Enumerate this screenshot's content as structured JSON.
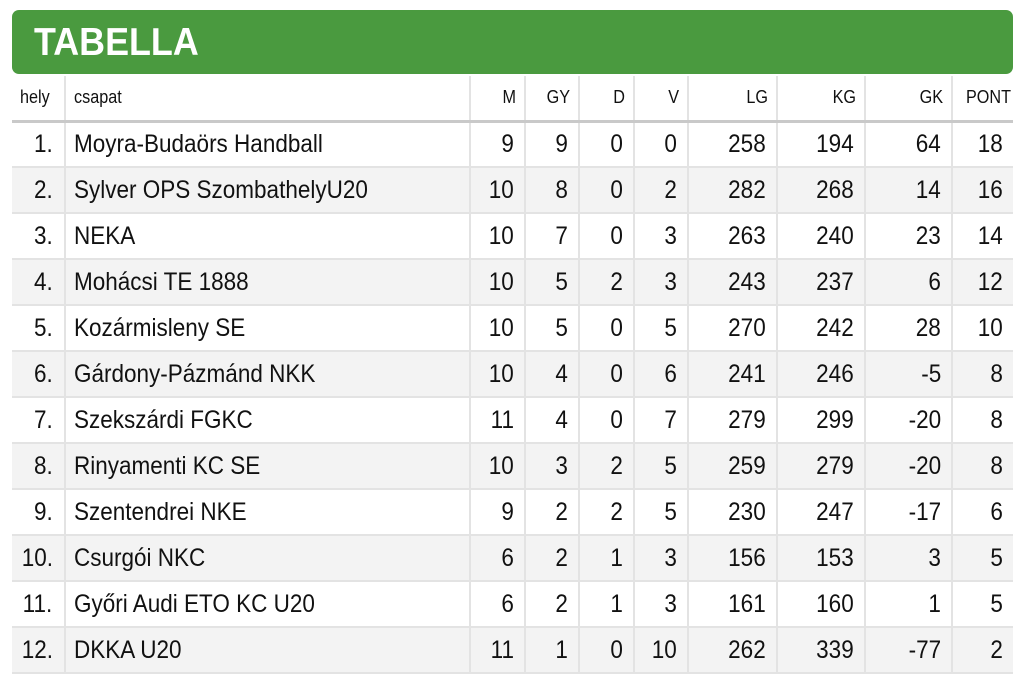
{
  "header": {
    "title": "TABELLA",
    "background_color": "#4a9a3f"
  },
  "table": {
    "columns": {
      "hely": "hely",
      "csapat": "csapat",
      "m": "M",
      "gy": "GY",
      "d": "D",
      "v": "V",
      "lg": "LG",
      "kg": "KG",
      "gk": "GK",
      "pont": "PONT"
    },
    "rows": [
      {
        "hely": "1.",
        "csapat": "Moyra-Budaörs Handball",
        "m": "9",
        "gy": "9",
        "d": "0",
        "v": "0",
        "lg": "258",
        "kg": "194",
        "gk": "64",
        "pont": "18"
      },
      {
        "hely": "2.",
        "csapat": "Sylver OPS SzombathelyU20",
        "m": "10",
        "gy": "8",
        "d": "0",
        "v": "2",
        "lg": "282",
        "kg": "268",
        "gk": "14",
        "pont": "16"
      },
      {
        "hely": "3.",
        "csapat": "NEKA",
        "m": "10",
        "gy": "7",
        "d": "0",
        "v": "3",
        "lg": "263",
        "kg": "240",
        "gk": "23",
        "pont": "14"
      },
      {
        "hely": "4.",
        "csapat": "Mohácsi TE 1888",
        "m": "10",
        "gy": "5",
        "d": "2",
        "v": "3",
        "lg": "243",
        "kg": "237",
        "gk": "6",
        "pont": "12"
      },
      {
        "hely": "5.",
        "csapat": "Kozármisleny SE",
        "m": "10",
        "gy": "5",
        "d": "0",
        "v": "5",
        "lg": "270",
        "kg": "242",
        "gk": "28",
        "pont": "10"
      },
      {
        "hely": "6.",
        "csapat": "Gárdony-Pázmánd NKK",
        "m": "10",
        "gy": "4",
        "d": "0",
        "v": "6",
        "lg": "241",
        "kg": "246",
        "gk": "-5",
        "pont": "8"
      },
      {
        "hely": "7.",
        "csapat": "Szekszárdi FGKC",
        "m": "11",
        "gy": "4",
        "d": "0",
        "v": "7",
        "lg": "279",
        "kg": "299",
        "gk": "-20",
        "pont": "8"
      },
      {
        "hely": "8.",
        "csapat": "Rinyamenti KC SE",
        "m": "10",
        "gy": "3",
        "d": "2",
        "v": "5",
        "lg": "259",
        "kg": "279",
        "gk": "-20",
        "pont": "8"
      },
      {
        "hely": "9.",
        "csapat": "Szentendrei NKE",
        "m": "9",
        "gy": "2",
        "d": "2",
        "v": "5",
        "lg": "230",
        "kg": "247",
        "gk": "-17",
        "pont": "6"
      },
      {
        "hely": "10.",
        "csapat": "Csurgói NKC",
        "m": "6",
        "gy": "2",
        "d": "1",
        "v": "3",
        "lg": "156",
        "kg": "153",
        "gk": "3",
        "pont": "5"
      },
      {
        "hely": "11.",
        "csapat": "Győri Audi ETO KC U20",
        "m": "6",
        "gy": "2",
        "d": "1",
        "v": "3",
        "lg": "161",
        "kg": "160",
        "gk": "1",
        "pont": "5"
      },
      {
        "hely": "12.",
        "csapat": "DKKA U20",
        "m": "11",
        "gy": "1",
        "d": "0",
        "v": "10",
        "lg": "262",
        "kg": "339",
        "gk": "-77",
        "pont": "2"
      }
    ]
  }
}
